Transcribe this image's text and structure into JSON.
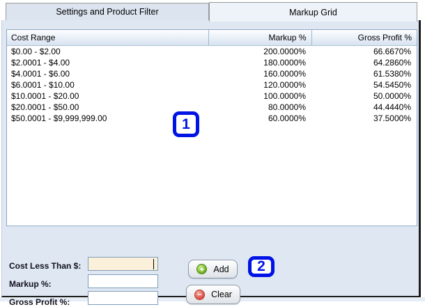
{
  "tabs": [
    {
      "label": "Settings and Product Filter",
      "active": false
    },
    {
      "label": "Markup Grid",
      "active": true
    }
  ],
  "grid": {
    "columns": [
      "Cost Range",
      "Markup %",
      "Gross Profit %"
    ],
    "rows": [
      [
        "$0.00 - $2.00",
        "200.0000%",
        "66.6670%"
      ],
      [
        "$2.0001 - $4.00",
        "180.0000%",
        "64.2860%"
      ],
      [
        "$4.0001 - $6.00",
        "160.0000%",
        "61.5380%"
      ],
      [
        "$6.0001 - $10.00",
        "120.0000%",
        "54.5450%"
      ],
      [
        "$10.0001 - $20.00",
        "100.0000%",
        "50.0000%"
      ],
      [
        "$20.0001 - $50.00",
        "80.0000%",
        "44.4440%"
      ],
      [
        "$50.0001 - $9,999,999.00",
        "60.0000%",
        "37.5000%"
      ]
    ]
  },
  "form": {
    "fields": [
      {
        "label": "Cost Less Than $:",
        "value": "",
        "focused": true
      },
      {
        "label": "Markup %:",
        "value": "",
        "focused": false
      },
      {
        "label": "Gross Profit %:",
        "value": "",
        "focused": false
      }
    ],
    "add_label": "Add",
    "clear_label": "Clear",
    "add_icon_glyph": "+",
    "clear_icon_glyph": "−"
  },
  "annotations": [
    {
      "number": "1"
    },
    {
      "number": "2"
    }
  ],
  "colors": {
    "annotation_accent": "#0013e6",
    "panel_background": "#dee7f2",
    "add_icon_green": "#79ba2b",
    "clear_icon_red": "#e15a4c",
    "focused_field_background": "#fbf0da",
    "grid_border": "#90a9c3"
  }
}
